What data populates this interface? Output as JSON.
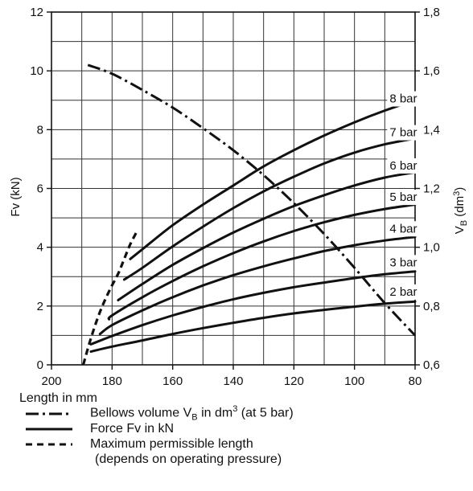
{
  "chart_data": {
    "type": "line",
    "xlabel": "Length in mm",
    "ylabel_left": "Fv (kN)",
    "ylabel_right": "V",
    "ylabel_right_sub": "B",
    "ylabel_right_unit": " (dm",
    "ylabel_right_sup": "3",
    "ylabel_right_close": ")",
    "x_reversed": true,
    "xlim": [
      200,
      80
    ],
    "ylim_left": [
      0,
      12
    ],
    "ylim_right": [
      0.6,
      1.8
    ],
    "x_ticks": [
      "200",
      "180",
      "160",
      "140",
      "120",
      "100",
      "80"
    ],
    "y_left_ticks": [
      "0",
      "2",
      "4",
      "6",
      "8",
      "10",
      "12"
    ],
    "y_right_ticks": [
      "0,6",
      "0,8",
      "1,0",
      "1,2",
      "1,4",
      "1,6",
      "1,8"
    ],
    "grid": true,
    "force_series": [
      {
        "name": "2 bar",
        "x": [
          187,
          180,
          170,
          160,
          150,
          140,
          130,
          120,
          110,
          100,
          90,
          80
        ],
        "y": [
          0.45,
          0.62,
          0.83,
          1.05,
          1.25,
          1.43,
          1.6,
          1.75,
          1.87,
          1.98,
          2.08,
          2.15
        ]
      },
      {
        "name": "3 bar",
        "x": [
          187,
          180,
          170,
          160,
          150,
          140,
          130,
          120,
          110,
          100,
          90,
          80
        ],
        "y": [
          0.7,
          0.98,
          1.35,
          1.68,
          1.97,
          2.23,
          2.45,
          2.64,
          2.8,
          2.95,
          3.08,
          3.18
        ]
      },
      {
        "name": "4 bar",
        "x": [
          184,
          180,
          170,
          160,
          150,
          140,
          130,
          120,
          110,
          100,
          90,
          80
        ],
        "y": [
          1.05,
          1.35,
          1.85,
          2.3,
          2.7,
          3.05,
          3.35,
          3.62,
          3.87,
          4.07,
          4.23,
          4.35
        ]
      },
      {
        "name": "5 bar",
        "x": [
          181,
          180,
          170,
          160,
          150,
          140,
          130,
          120,
          110,
          100,
          90,
          80
        ],
        "y": [
          1.55,
          1.68,
          2.3,
          2.85,
          3.35,
          3.8,
          4.2,
          4.55,
          4.85,
          5.1,
          5.3,
          5.45
        ]
      },
      {
        "name": "6 bar",
        "x": [
          178,
          170,
          160,
          150,
          140,
          130,
          120,
          110,
          100,
          90,
          80
        ],
        "y": [
          2.2,
          2.75,
          3.4,
          3.97,
          4.5,
          4.97,
          5.4,
          5.77,
          6.1,
          6.37,
          6.55
        ]
      },
      {
        "name": "7 bar",
        "x": [
          176,
          170,
          160,
          150,
          140,
          130,
          120,
          110,
          100,
          90,
          80
        ],
        "y": [
          2.9,
          3.3,
          4.03,
          4.7,
          5.33,
          5.9,
          6.4,
          6.85,
          7.22,
          7.5,
          7.7
        ]
      },
      {
        "name": "8 bar",
        "x": [
          174,
          170,
          160,
          150,
          140,
          130,
          120,
          110,
          100,
          90,
          80
        ],
        "y": [
          3.6,
          3.93,
          4.75,
          5.45,
          6.1,
          6.75,
          7.3,
          7.8,
          8.25,
          8.65,
          9.0
        ]
      }
    ],
    "volume_series": {
      "name": "Bellows volume V_B in dm³ (at 5 bar)",
      "axis": "right",
      "x": [
        188,
        180,
        170,
        160,
        150,
        140,
        130,
        120,
        110,
        100,
        90,
        80
      ],
      "y": [
        1.62,
        1.59,
        1.535,
        1.475,
        1.405,
        1.33,
        1.245,
        1.15,
        1.045,
        0.93,
        0.81,
        0.7
      ]
    },
    "max_length_series": {
      "name": "Maximum permissible length",
      "x": [
        189.5,
        187,
        184,
        181,
        178,
        176,
        174,
        171.5
      ],
      "y": [
        0,
        0.9,
        1.8,
        2.5,
        3.1,
        3.6,
        4.1,
        4.6
      ]
    },
    "legend": {
      "xlabel": "Length in mm",
      "items": [
        {
          "style": "dashdot",
          "text_pre": "Bellows volume V",
          "text_sub": "B",
          "text_mid": " in dm",
          "text_sup": "3",
          "text_post": " (at 5 bar)"
        },
        {
          "style": "solid",
          "text_pre": "Force Fv in kN",
          "text_sub": "",
          "text_mid": "",
          "text_sup": "",
          "text_post": ""
        },
        {
          "style": "dashed",
          "text_pre": "Maximum permissible length",
          "text_sub": "",
          "text_mid": "",
          "text_sup": "",
          "text_post": ""
        }
      ],
      "note": "(depends on operating pressure)"
    }
  }
}
